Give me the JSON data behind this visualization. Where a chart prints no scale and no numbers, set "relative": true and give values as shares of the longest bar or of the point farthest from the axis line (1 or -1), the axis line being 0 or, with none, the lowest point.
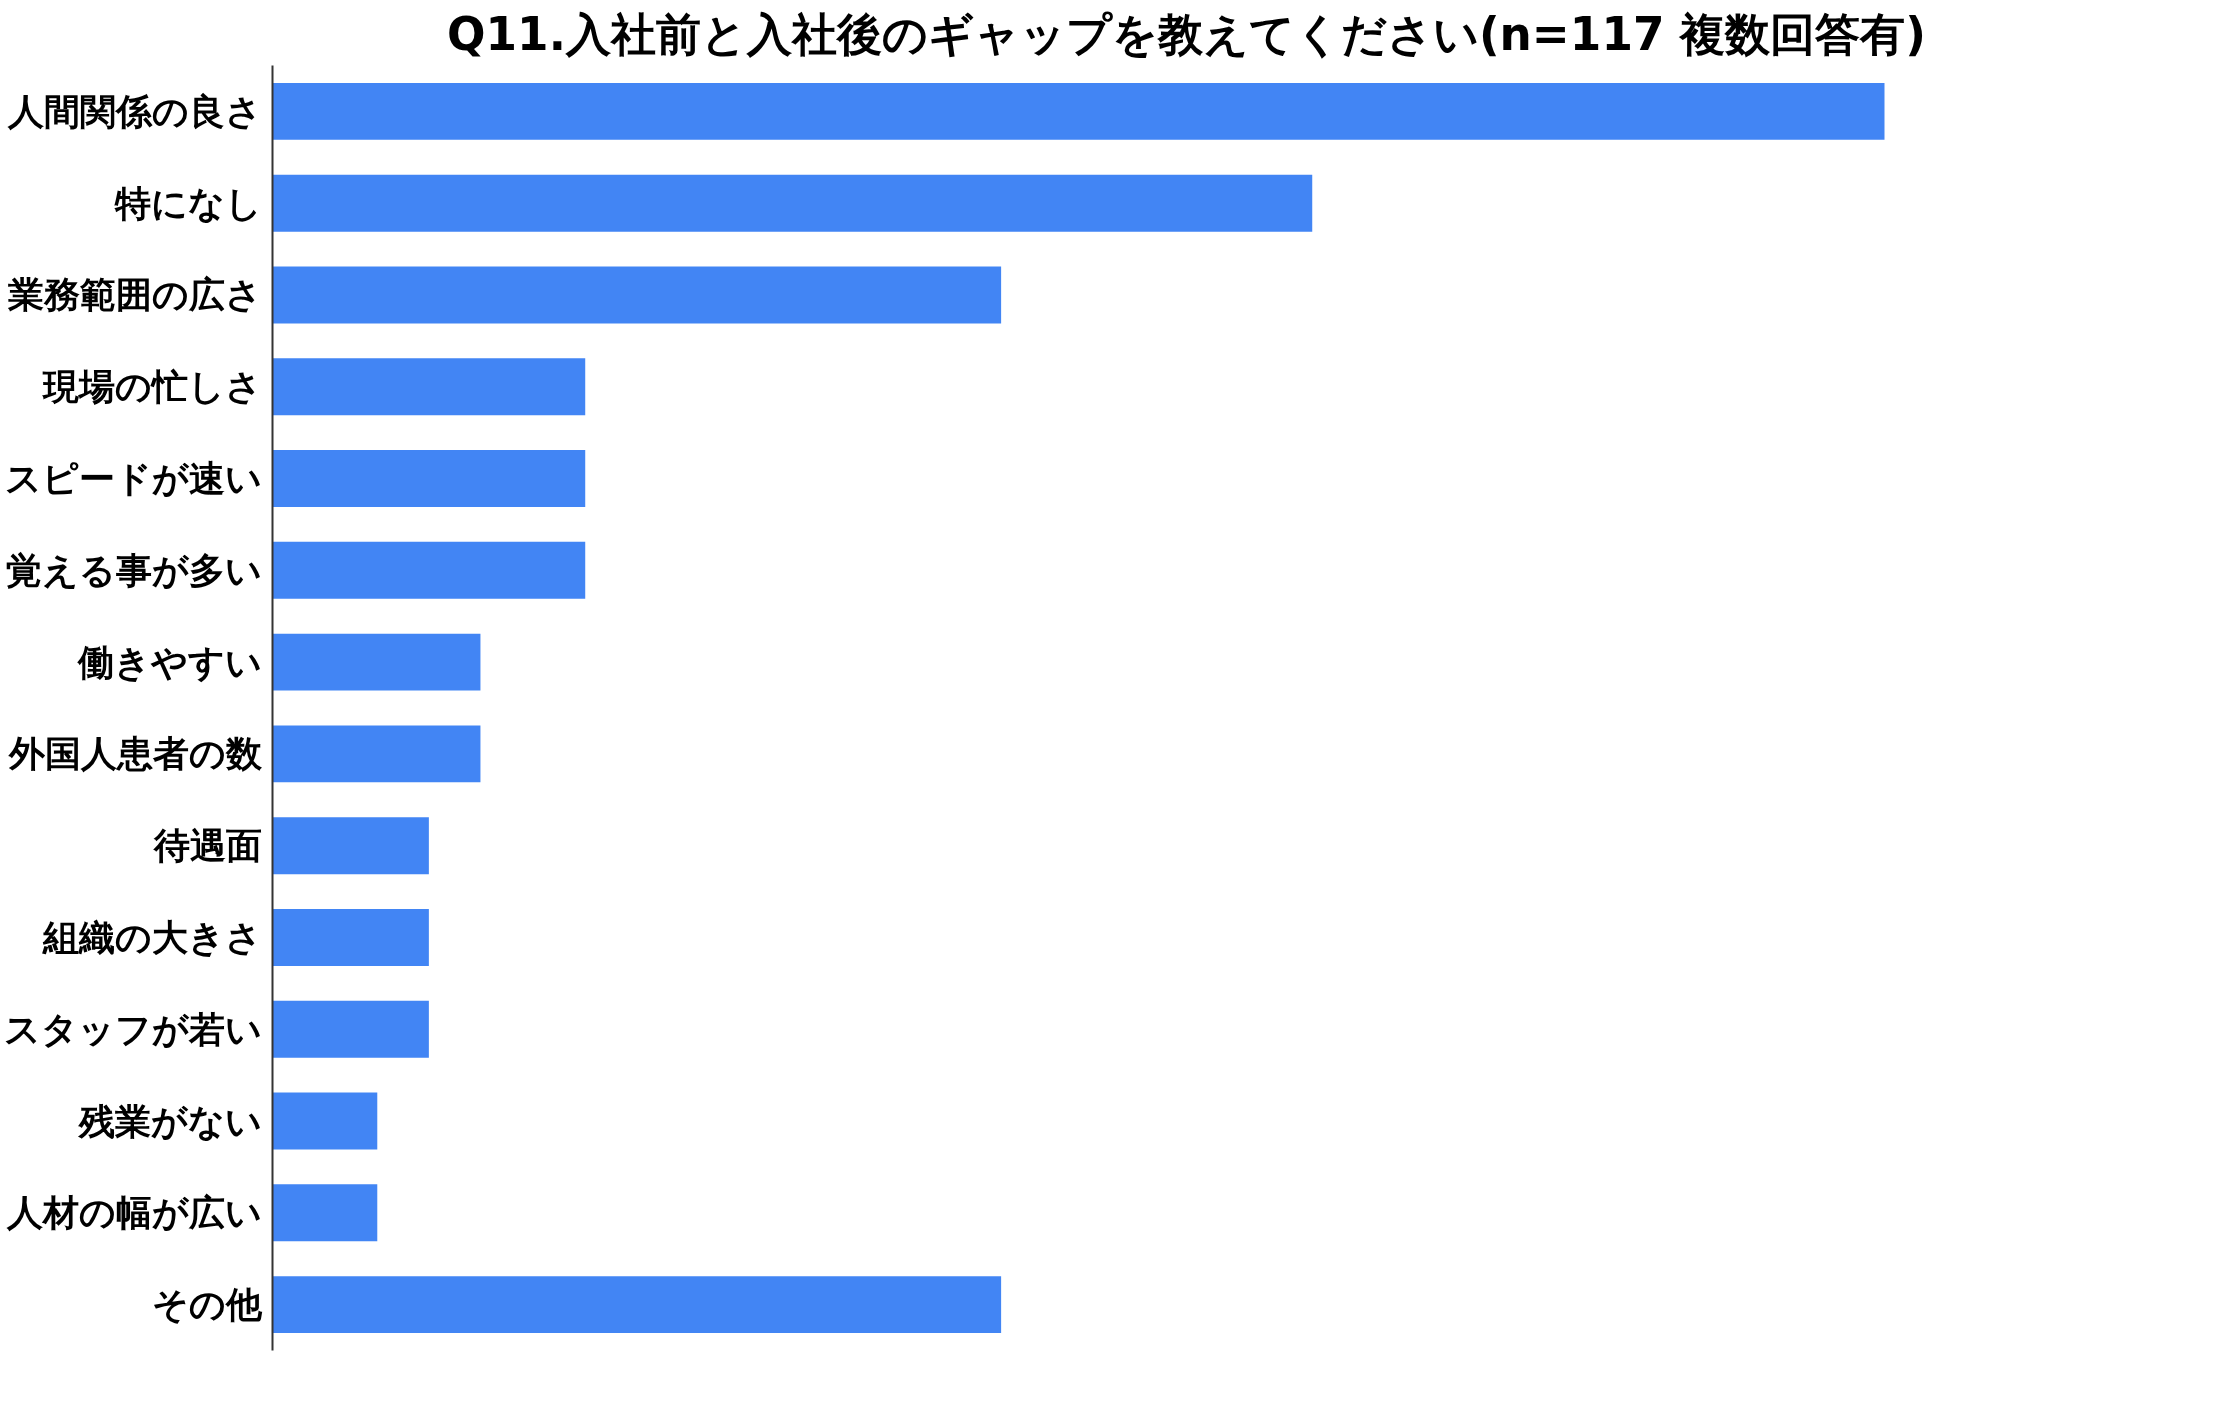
{
  "chart_data": {
    "type": "bar",
    "orientation": "horizontal",
    "relative": true,
    "title": "Q11.入社前と入社後のギャップを教えてください(n=117 複数回答有)",
    "categories": [
      "人間関係の良さ",
      "特になし",
      "業務範囲の広さ",
      "現場の忙しさ",
      "スピードが速い",
      "覚える事が多い",
      "働きやすい",
      "外国人患者の数",
      "待遇面",
      "組織の大きさ",
      "スタッフが若い",
      "残業がない",
      "人材の幅が広い",
      "その他"
    ],
    "values": [
      1,
      0.645,
      0.452,
      0.194,
      0.194,
      0.194,
      0.129,
      0.129,
      0.097,
      0.097,
      0.097,
      0.065,
      0.065,
      0.452
    ],
    "color": "#4285f4"
  }
}
